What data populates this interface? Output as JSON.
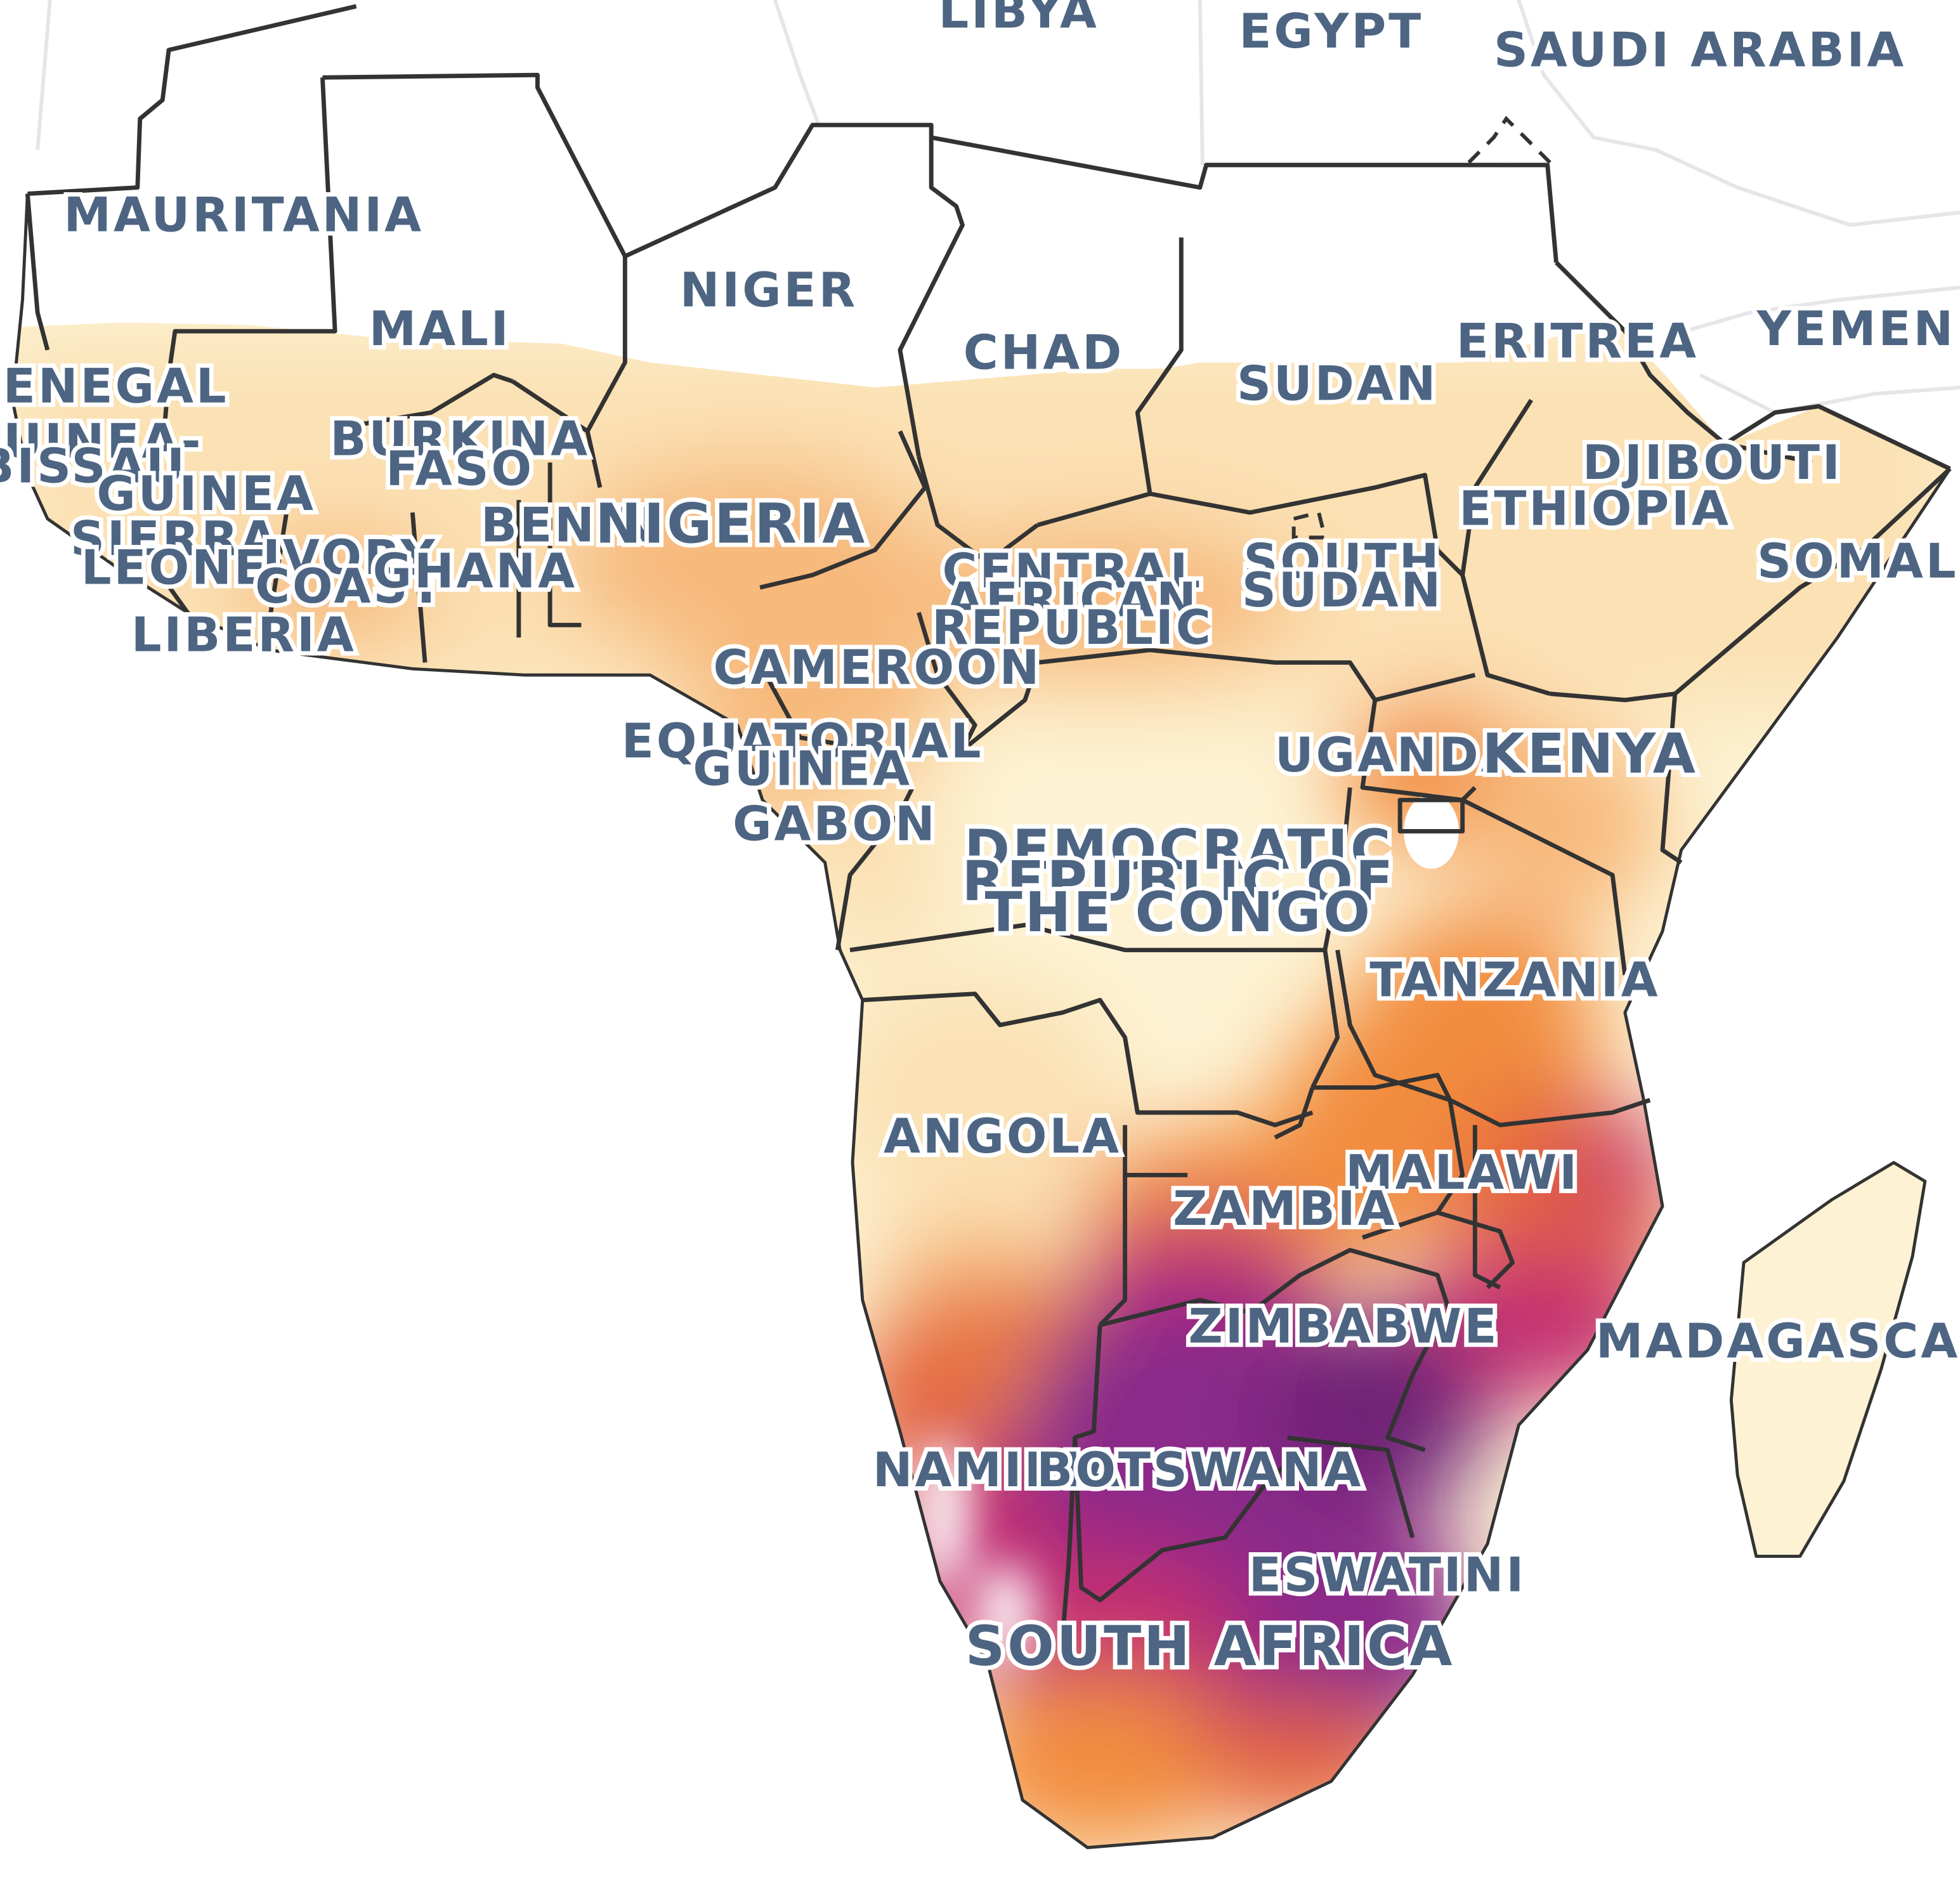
{
  "map": {
    "colors": {
      "background": "#ffffff",
      "land_no_data": "#ffffff",
      "scale": [
        "#fdf3d4",
        "#fbe1b4",
        "#f7b97c",
        "#f28c3e",
        "#e4643c",
        "#c42e70",
        "#8b2a8a",
        "#6e2476"
      ],
      "label": "#4d6582",
      "border": "#333333"
    },
    "labels": [
      {
        "key": "libya",
        "text": "LIBYA"
      },
      {
        "key": "egypt",
        "text": "EGYPT"
      },
      {
        "key": "saudi-arabia",
        "text": "SAUDI ARABIA"
      },
      {
        "key": "mauritania",
        "text": "MAURITANIA"
      },
      {
        "key": "niger",
        "text": "NIGER"
      },
      {
        "key": "mali",
        "text": "MALI"
      },
      {
        "key": "chad",
        "text": "CHAD"
      },
      {
        "key": "eritrea",
        "text": "ERITREA"
      },
      {
        "key": "yemen",
        "text": "YEMEN"
      },
      {
        "key": "senegal",
        "text": "SENEGAL"
      },
      {
        "key": "sudan",
        "text": "SUDAN"
      },
      {
        "key": "guinea-bissau-1",
        "text": "GUINEA-"
      },
      {
        "key": "guinea-bissau-2",
        "text": "BISSAU"
      },
      {
        "key": "burkina-faso-1",
        "text": "BURKINA"
      },
      {
        "key": "burkina-faso-2",
        "text": "FASO"
      },
      {
        "key": "djibouti",
        "text": "DJIBOUTI"
      },
      {
        "key": "guinea",
        "text": "GUINEA"
      },
      {
        "key": "ethiopia",
        "text": "ETHIOPIA"
      },
      {
        "key": "benin",
        "text": "BENIN"
      },
      {
        "key": "nigeria",
        "text": "NIGERIA"
      },
      {
        "key": "sierra-leone-1",
        "text": "SIERRA"
      },
      {
        "key": "sierra-leone-2",
        "text": "LEONE"
      },
      {
        "key": "ivory-coast-1",
        "text": "IVORY"
      },
      {
        "key": "ivory-coast-2",
        "text": "COAST"
      },
      {
        "key": "ghana",
        "text": "GHANA"
      },
      {
        "key": "car-1",
        "text": "CENTRAL"
      },
      {
        "key": "car-2",
        "text": "AFRICAN"
      },
      {
        "key": "car-3",
        "text": "REPUBLIC"
      },
      {
        "key": "south-sudan-1",
        "text": "SOUTH"
      },
      {
        "key": "south-sudan-2",
        "text": "SUDAN"
      },
      {
        "key": "somalia",
        "text": "SOMALIA"
      },
      {
        "key": "liberia",
        "text": "LIBERIA"
      },
      {
        "key": "cameroon",
        "text": "CAMEROON"
      },
      {
        "key": "equatorial-guinea-1",
        "text": "EQUATORIAL"
      },
      {
        "key": "equatorial-guinea-2",
        "text": "GUINEA"
      },
      {
        "key": "uganda",
        "text": "UGANDA"
      },
      {
        "key": "kenya",
        "text": "KENYA"
      },
      {
        "key": "gabon",
        "text": "GABON"
      },
      {
        "key": "drc-1",
        "text": "DEMOCRATIC"
      },
      {
        "key": "drc-2",
        "text": "REPUBLIC OF"
      },
      {
        "key": "drc-3",
        "text": "THE CONGO"
      },
      {
        "key": "tanzania",
        "text": "TANZANIA"
      },
      {
        "key": "angola",
        "text": "ANGOLA"
      },
      {
        "key": "malawi",
        "text": "MALAWI"
      },
      {
        "key": "zambia",
        "text": "ZAMBIA"
      },
      {
        "key": "zimbabwe",
        "text": "ZIMBABWE"
      },
      {
        "key": "madagascar",
        "text": "MADAGASCAR"
      },
      {
        "key": "namibia",
        "text": "NAMIBIA"
      },
      {
        "key": "botswana",
        "text": "BOTSWANA"
      },
      {
        "key": "eswatini",
        "text": "ESWATINI"
      },
      {
        "key": "south-africa",
        "text": "SOUTH AFRICA"
      }
    ]
  }
}
